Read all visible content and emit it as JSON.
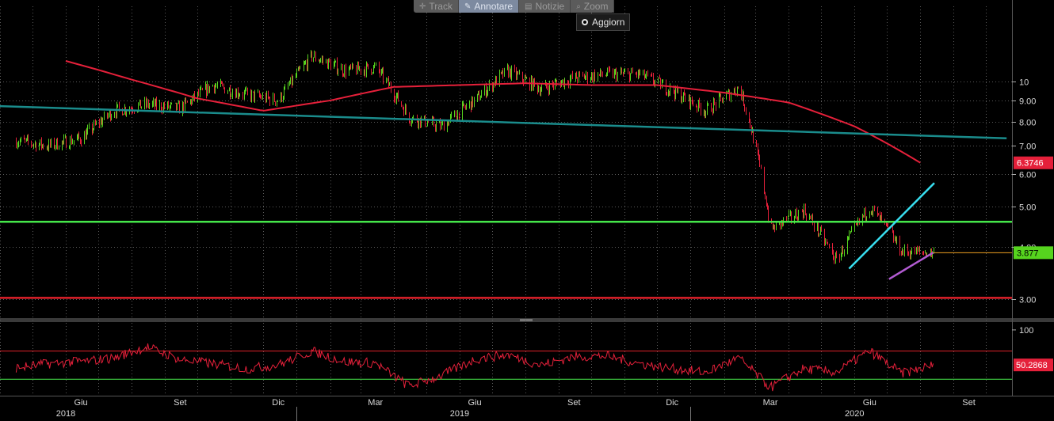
{
  "toolbar": {
    "items": [
      {
        "label": "Track",
        "icon": "crosshair-icon",
        "active": false
      },
      {
        "label": "Annotare",
        "icon": "pencil-icon",
        "active": true
      },
      {
        "label": "Notizie",
        "icon": "news-icon",
        "active": false
      },
      {
        "label": "Zoom",
        "icon": "magnifier-icon",
        "active": false
      }
    ],
    "refresh_label": "Aggiorn"
  },
  "chart_data": [
    {
      "type": "line",
      "panel": "price",
      "y_scale": "log",
      "ylim": [
        2.7,
        14.5
      ],
      "y_ticks": [
        "10",
        "9.00",
        "8.00",
        "7.00",
        "6.00",
        "5.00",
        "4.00",
        "3.00"
      ],
      "x_axis": {
        "months": [
          "Giu",
          "Set",
          "Dic",
          "Mar",
          "Giu",
          "Set",
          "Dic",
          "Mar",
          "Giu",
          "Set"
        ],
        "years": [
          "2018",
          "2019",
          "2020"
        ]
      },
      "series": [
        {
          "style": "candles",
          "colors": {
            "up": "#56d41e",
            "down": "#e5203a"
          },
          "x": [
            "2018-04-16",
            "2018-05-15",
            "2018-06-15",
            "2018-07-15",
            "2018-08-15",
            "2018-09-15",
            "2018-10-15",
            "2018-11-15",
            "2018-12-15",
            "2019-01-15",
            "2019-02-15",
            "2019-03-15",
            "2019-04-15",
            "2019-05-15",
            "2019-06-15",
            "2019-07-15",
            "2019-08-15",
            "2019-09-15",
            "2019-10-15",
            "2019-11-15",
            "2019-12-15",
            "2020-01-15",
            "2020-02-15",
            "2020-03-15",
            "2020-04-15",
            "2020-05-15",
            "2020-06-15",
            "2020-07-15",
            "2020-08-13"
          ],
          "y": [
            7.2,
            7.0,
            7.3,
            8.5,
            8.8,
            8.6,
            9.8,
            9.3,
            9.0,
            11.5,
            10.6,
            10.8,
            8.2,
            7.8,
            9.0,
            10.6,
            9.6,
            10.2,
            10.4,
            10.4,
            9.5,
            8.5,
            9.7,
            4.4,
            4.9,
            3.7,
            5.0,
            3.9,
            3.877
          ]
        },
        {
          "style": "moving-average",
          "color": "#e5203a",
          "x": [
            "2018-06-01",
            "2018-08-01",
            "2018-10-01",
            "2018-12-01",
            "2019-02-01",
            "2019-04-01",
            "2019-06-01",
            "2019-08-01",
            "2019-10-01",
            "2019-12-01",
            "2020-02-01",
            "2020-04-01",
            "2020-06-01",
            "2020-08-01"
          ],
          "y": [
            11.2,
            10.1,
            9.1,
            8.5,
            9.0,
            9.7,
            9.8,
            9.9,
            9.8,
            9.8,
            9.4,
            8.9,
            7.8,
            6.3746
          ]
        }
      ],
      "lines": [
        {
          "kind": "trendline",
          "color": "#1a8c8c",
          "x": [
            "2017-12-15",
            "2020-10-20"
          ],
          "y": [
            8.9,
            7.3
          ]
        },
        {
          "kind": "horizontal",
          "color": "#45e64a",
          "y": 4.6
        },
        {
          "kind": "horizontal",
          "color": "#e0202a",
          "y": 3.02
        },
        {
          "kind": "trendline",
          "color": "#38dff0",
          "x": [
            "2020-05-27",
            "2020-08-14"
          ],
          "y": [
            3.55,
            5.7
          ]
        },
        {
          "kind": "trendline",
          "color": "#b25bd2",
          "x": [
            "2020-07-03",
            "2020-08-13"
          ],
          "y": [
            3.35,
            3.88
          ]
        },
        {
          "kind": "horizontal-ray",
          "color": "#f0a020",
          "x_start": "2020-08-13",
          "y": 3.877
        }
      ],
      "last_value_labels": [
        {
          "value": "6.3746",
          "color": "#e5203a"
        },
        {
          "value": "3.877",
          "color": "#56d41e"
        }
      ]
    },
    {
      "type": "line",
      "panel": "oscillator",
      "ylim": [
        10,
        110
      ],
      "y_ticks": [
        "100"
      ],
      "reference_lines": [
        {
          "y": 70,
          "color": "#e0202a"
        },
        {
          "y": 30,
          "color": "#45e64a"
        }
      ],
      "series": [
        {
          "color": "#e5203a",
          "x": [
            "2018-04-16",
            "2018-05-15",
            "2018-06-15",
            "2018-07-15",
            "2018-08-15",
            "2018-09-15",
            "2018-10-15",
            "2018-11-15",
            "2018-12-15",
            "2019-01-15",
            "2019-02-15",
            "2019-03-15",
            "2019-04-15",
            "2019-05-15",
            "2019-06-15",
            "2019-07-15",
            "2019-08-15",
            "2019-09-15",
            "2019-10-15",
            "2019-11-15",
            "2019-12-15",
            "2020-01-15",
            "2020-02-15",
            "2020-03-15",
            "2020-04-15",
            "2020-05-15",
            "2020-06-15",
            "2020-07-15",
            "2020-08-13"
          ],
          "y": [
            46,
            52,
            55,
            60,
            76,
            58,
            52,
            45,
            50,
            70,
            55,
            53,
            20,
            35,
            58,
            65,
            50,
            62,
            63,
            52,
            45,
            40,
            60,
            18,
            45,
            40,
            70,
            38,
            50.2868
          ]
        }
      ],
      "last_value_label": {
        "value": "50.2868",
        "color": "#e5203a"
      }
    }
  ]
}
